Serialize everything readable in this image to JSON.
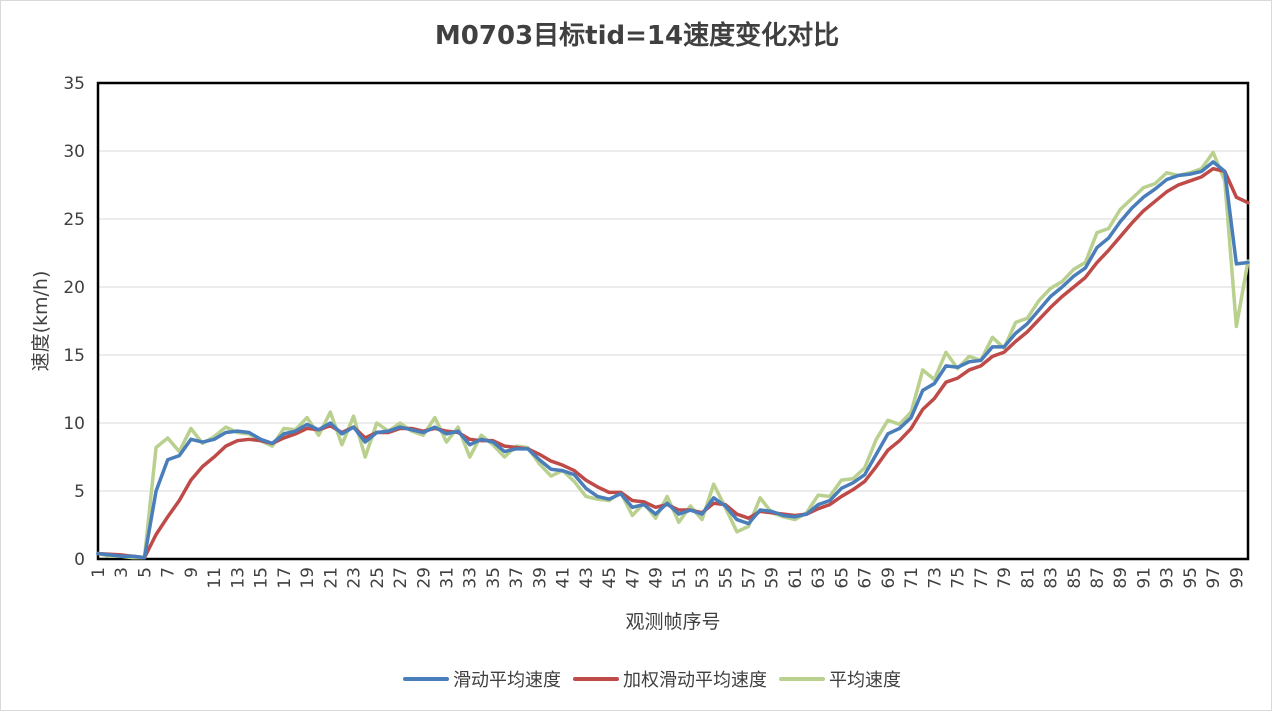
{
  "chart_data": {
    "type": "line",
    "title": "M0703目标tid=14速度变化对比",
    "xlabel": "观测帧序号",
    "ylabel": "速度(km/h)",
    "ylim": [
      0,
      35
    ],
    "yticks": [
      0,
      5,
      10,
      15,
      20,
      25,
      30,
      35
    ],
    "xlim": [
      1,
      100
    ],
    "xtick_labels": [
      "1",
      "3",
      "5",
      "7",
      "9",
      "11",
      "13",
      "15",
      "17",
      "19",
      "21",
      "23",
      "25",
      "27",
      "29",
      "31",
      "33",
      "35",
      "37",
      "39",
      "41",
      "43",
      "45",
      "47",
      "49",
      "51",
      "53",
      "55",
      "57",
      "59",
      "61",
      "63",
      "65",
      "67",
      "69",
      "71",
      "73",
      "75",
      "77",
      "79",
      "81",
      "83",
      "85",
      "87",
      "89",
      "91",
      "93",
      "95",
      "97",
      "99"
    ],
    "grid": "horizontal",
    "legend_position": "bottom",
    "x": [
      1,
      2,
      3,
      4,
      5,
      6,
      7,
      8,
      9,
      10,
      11,
      12,
      13,
      14,
      15,
      16,
      17,
      18,
      19,
      20,
      21,
      22,
      23,
      24,
      25,
      26,
      27,
      28,
      29,
      30,
      31,
      32,
      33,
      34,
      35,
      36,
      37,
      38,
      39,
      40,
      41,
      42,
      43,
      44,
      45,
      46,
      47,
      48,
      49,
      50,
      51,
      52,
      53,
      54,
      55,
      56,
      57,
      58,
      59,
      60,
      61,
      62,
      63,
      64,
      65,
      66,
      67,
      68,
      69,
      70,
      71,
      72,
      73,
      74,
      75,
      76,
      77,
      78,
      79,
      80,
      81,
      82,
      83,
      84,
      85,
      86,
      87,
      88,
      89,
      90,
      91,
      92,
      93,
      94,
      95,
      96,
      97,
      98,
      99,
      100
    ],
    "series": [
      {
        "name": "滑动平均速度",
        "color": "#4a7ebb",
        "values": [
          0.4,
          0.3,
          0.2,
          0.2,
          0.1,
          5.0,
          7.3,
          7.6,
          8.8,
          8.6,
          8.8,
          9.3,
          9.4,
          9.3,
          8.8,
          8.5,
          9.2,
          9.4,
          9.9,
          9.5,
          10.0,
          9.2,
          9.7,
          8.6,
          9.3,
          9.4,
          9.7,
          9.5,
          9.3,
          9.7,
          9.2,
          9.4,
          8.4,
          8.8,
          8.6,
          7.9,
          8.1,
          8.1,
          7.3,
          6.6,
          6.5,
          6.2,
          5.2,
          4.6,
          4.4,
          4.8,
          3.8,
          4.0,
          3.3,
          4.1,
          3.3,
          3.6,
          3.3,
          4.5,
          3.9,
          2.9,
          2.6,
          3.6,
          3.5,
          3.2,
          3.1,
          3.3,
          4.0,
          4.3,
          5.2,
          5.6,
          6.2,
          7.7,
          9.2,
          9.6,
          10.4,
          12.4,
          12.9,
          14.2,
          14.1,
          14.5,
          14.6,
          15.6,
          15.6,
          16.6,
          17.3,
          18.3,
          19.3,
          20.0,
          20.8,
          21.4,
          22.9,
          23.6,
          24.8,
          25.8,
          26.6,
          27.2,
          27.9,
          28.2,
          28.3,
          28.5,
          29.2,
          28.5,
          21.7,
          21.8
        ]
      },
      {
        "name": "加权滑动平均速度",
        "color": "#be4b48",
        "values": [
          0.4,
          0.35,
          0.3,
          0.2,
          0.1,
          1.8,
          3.1,
          4.3,
          5.8,
          6.8,
          7.5,
          8.3,
          8.7,
          8.8,
          8.7,
          8.5,
          8.9,
          9.2,
          9.6,
          9.5,
          9.8,
          9.3,
          9.7,
          8.9,
          9.3,
          9.3,
          9.6,
          9.6,
          9.4,
          9.6,
          9.4,
          9.3,
          8.8,
          8.7,
          8.7,
          8.3,
          8.2,
          8.1,
          7.7,
          7.2,
          6.9,
          6.5,
          5.8,
          5.3,
          4.9,
          4.9,
          4.3,
          4.2,
          3.8,
          4.0,
          3.6,
          3.6,
          3.4,
          4.1,
          4.0,
          3.3,
          3.0,
          3.5,
          3.4,
          3.3,
          3.2,
          3.3,
          3.7,
          4.0,
          4.6,
          5.1,
          5.7,
          6.8,
          8.0,
          8.7,
          9.6,
          11.0,
          11.8,
          13.0,
          13.3,
          13.9,
          14.2,
          14.9,
          15.2,
          16.0,
          16.7,
          17.6,
          18.5,
          19.3,
          20.0,
          20.7,
          21.8,
          22.7,
          23.7,
          24.7,
          25.6,
          26.3,
          27.0,
          27.5,
          27.8,
          28.1,
          28.7,
          28.5,
          26.6,
          26.2
        ]
      },
      {
        "name": "平均速度",
        "color": "#b9d08e",
        "values": [
          0.4,
          0.2,
          0.2,
          0.1,
          0.1,
          8.2,
          8.9,
          7.9,
          9.6,
          8.5,
          9.0,
          9.7,
          9.3,
          9.2,
          8.7,
          8.3,
          9.6,
          9.5,
          10.4,
          9.1,
          10.8,
          8.4,
          10.5,
          7.5,
          10.0,
          9.4,
          10.0,
          9.4,
          9.1,
          10.4,
          8.6,
          9.7,
          7.5,
          9.1,
          8.4,
          7.5,
          8.3,
          8.2,
          7.0,
          6.1,
          6.5,
          5.7,
          4.6,
          4.4,
          4.3,
          4.9,
          3.2,
          4.1,
          3.0,
          4.6,
          2.7,
          3.9,
          2.9,
          5.5,
          3.8,
          2.0,
          2.4,
          4.5,
          3.4,
          3.1,
          2.9,
          3.4,
          4.7,
          4.6,
          5.8,
          5.9,
          6.7,
          8.8,
          10.2,
          9.9,
          10.8,
          13.9,
          13.2,
          15.2,
          14.0,
          14.9,
          14.6,
          16.3,
          15.5,
          17.4,
          17.7,
          19.0,
          19.9,
          20.4,
          21.3,
          21.8,
          24.0,
          24.3,
          25.7,
          26.5,
          27.3,
          27.6,
          28.4,
          28.2,
          28.4,
          28.7,
          29.9,
          27.8,
          17.1,
          21.9
        ]
      }
    ]
  }
}
